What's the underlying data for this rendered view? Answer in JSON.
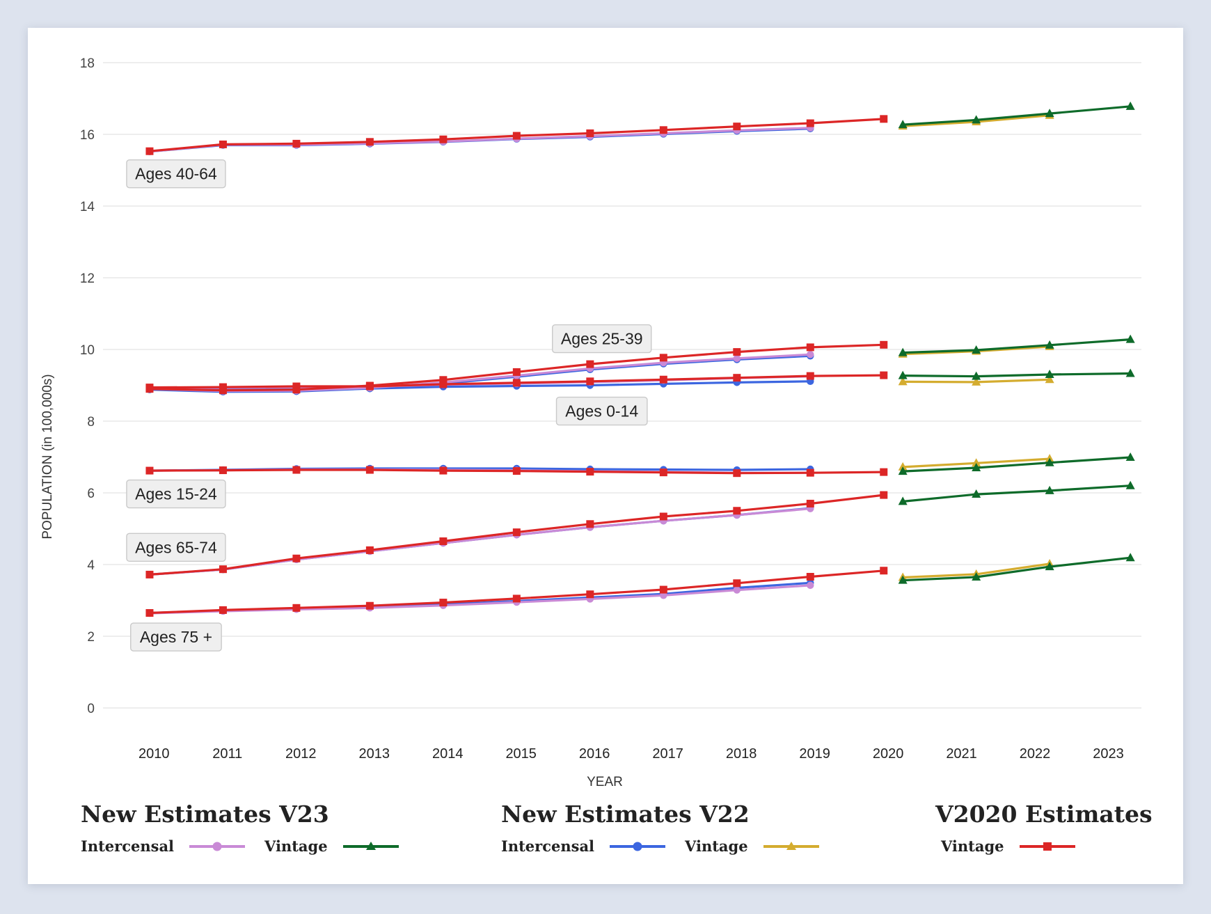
{
  "chart_data": {
    "type": "line",
    "xlabel": "YEAR",
    "ylabel": "POPULATION (in 100,000s)",
    "ylim": [
      0,
      18
    ],
    "yticks": [
      0,
      2,
      4,
      6,
      8,
      10,
      12,
      14,
      16,
      18
    ],
    "xlim": [
      2009.4,
      2023.45
    ],
    "xticks": [
      2010,
      2011,
      2012,
      2013,
      2014,
      2015,
      2016,
      2017,
      2018,
      2019,
      2020,
      2021,
      2022,
      2023
    ],
    "grid": true,
    "legend_position": "bottom",
    "legend_groups": [
      {
        "title": "New Estimates V23",
        "entries": [
          {
            "label": "Intercensal",
            "color": "#c98ad6",
            "marker": "circle"
          },
          {
            "label": "Vintage",
            "color": "#0e6b2a",
            "marker": "triangle"
          }
        ]
      },
      {
        "title": "New Estimates V22",
        "entries": [
          {
            "label": "Intercensal",
            "color": "#3c66e0",
            "marker": "circle"
          },
          {
            "label": "Vintage",
            "color": "#d4ac2f",
            "marker": "triangle"
          }
        ]
      },
      {
        "title": "V2020 Estimates",
        "entries": [
          {
            "label": "Vintage",
            "color": "#dc2626",
            "marker": "square"
          }
        ]
      }
    ],
    "annotations": [
      {
        "text": "Ages 40-64",
        "x": 2010.3,
        "y": 14.9
      },
      {
        "text": "Ages 25-39",
        "x": 2016.1,
        "y": 10.3
      },
      {
        "text": "Ages 0-14",
        "x": 2016.1,
        "y": 8.28
      },
      {
        "text": "Ages 15-24",
        "x": 2010.3,
        "y": 5.97
      },
      {
        "text": "Ages 65-74",
        "x": 2010.3,
        "y": 4.48
      },
      {
        "text": "Ages 75 +",
        "x": 2010.3,
        "y": 1.98
      }
    ],
    "series": [
      {
        "group": "Ages 40-64",
        "kind": "V2020 Vintage",
        "color": "#dc2626",
        "marker": "square",
        "x": [
          2009.94,
          2010.94,
          2011.94,
          2012.94,
          2013.94,
          2014.94,
          2015.94,
          2016.94,
          2017.94,
          2018.94,
          2019.94
        ],
        "values": [
          15.53,
          15.72,
          15.74,
          15.79,
          15.86,
          15.96,
          16.03,
          16.12,
          16.22,
          16.31,
          16.43
        ]
      },
      {
        "group": "Ages 40-64",
        "kind": "V22 Intercensal",
        "color": "#3c66e0",
        "marker": "circle",
        "x": [
          2009.94,
          2010.94,
          2011.94,
          2012.94,
          2013.94,
          2014.94,
          2015.94,
          2016.94,
          2017.94,
          2018.94
        ],
        "values": [
          15.52,
          15.7,
          15.7,
          15.74,
          15.79,
          15.87,
          15.93,
          16.01,
          16.09,
          16.16
        ]
      },
      {
        "group": "Ages 40-64",
        "kind": "V23 Intercensal",
        "color": "#c98ad6",
        "marker": "circle",
        "x": [
          2009.94,
          2010.94,
          2011.94,
          2012.94,
          2013.94,
          2014.94,
          2015.94,
          2016.94,
          2017.94,
          2018.94
        ],
        "values": [
          15.52,
          15.71,
          15.71,
          15.75,
          15.8,
          15.88,
          15.95,
          16.03,
          16.11,
          16.18
        ]
      },
      {
        "group": "Ages 40-64",
        "kind": "V22 Vintage",
        "color": "#d4ac2f",
        "marker": "triangle",
        "x": [
          2020.2,
          2021.2,
          2022.2
        ],
        "values": [
          16.23,
          16.35,
          16.53
        ]
      },
      {
        "group": "Ages 40-64",
        "kind": "V23 Vintage",
        "color": "#0e6b2a",
        "marker": "triangle",
        "x": [
          2020.2,
          2021.2,
          2022.2,
          2023.3
        ],
        "values": [
          16.27,
          16.4,
          16.58,
          16.78
        ]
      },
      {
        "group": "Ages 25-39",
        "kind": "V2020 Vintage",
        "color": "#dc2626",
        "marker": "square",
        "x": [
          2009.94,
          2010.94,
          2011.94,
          2012.94,
          2013.94,
          2014.94,
          2015.94,
          2016.94,
          2017.94,
          2018.94,
          2019.94
        ],
        "values": [
          8.9,
          8.86,
          8.88,
          8.99,
          9.15,
          9.37,
          9.59,
          9.77,
          9.93,
          10.06,
          10.13
        ]
      },
      {
        "group": "Ages 25-39",
        "kind": "V22 Intercensal",
        "color": "#3c66e0",
        "marker": "circle",
        "x": [
          2009.94,
          2010.94,
          2011.94,
          2012.94,
          2013.94,
          2014.94,
          2015.94,
          2016.94,
          2017.94,
          2018.94
        ],
        "values": [
          8.88,
          8.82,
          8.83,
          8.91,
          9.05,
          9.24,
          9.44,
          9.6,
          9.72,
          9.82
        ]
      },
      {
        "group": "Ages 25-39",
        "kind": "V23 Intercensal",
        "color": "#c98ad6",
        "marker": "circle",
        "x": [
          2009.94,
          2010.94,
          2011.94,
          2012.94,
          2013.94,
          2014.94,
          2015.94,
          2016.94,
          2017.94,
          2018.94
        ],
        "values": [
          8.9,
          8.84,
          8.85,
          8.93,
          9.08,
          9.27,
          9.47,
          9.63,
          9.75,
          9.86
        ]
      },
      {
        "group": "Ages 25-39",
        "kind": "V22 Vintage",
        "color": "#d4ac2f",
        "marker": "triangle",
        "x": [
          2020.2,
          2021.2,
          2022.2
        ],
        "values": [
          9.87,
          9.95,
          10.08
        ]
      },
      {
        "group": "Ages 25-39",
        "kind": "V23 Vintage",
        "color": "#0e6b2a",
        "marker": "triangle",
        "x": [
          2020.2,
          2021.2,
          2022.2,
          2023.3
        ],
        "values": [
          9.91,
          9.98,
          10.12,
          10.28
        ]
      },
      {
        "group": "Ages 0-14",
        "kind": "V2020 Vintage",
        "color": "#dc2626",
        "marker": "square",
        "x": [
          2009.94,
          2010.94,
          2011.94,
          2012.94,
          2013.94,
          2014.94,
          2015.94,
          2016.94,
          2017.94,
          2018.94,
          2019.94
        ],
        "values": [
          8.94,
          8.95,
          8.97,
          8.97,
          9.03,
          9.07,
          9.11,
          9.16,
          9.21,
          9.26,
          9.28
        ]
      },
      {
        "group": "Ages 0-14",
        "kind": "V22 Intercensal",
        "color": "#3c66e0",
        "marker": "circle",
        "x": [
          2009.94,
          2010.94,
          2011.94,
          2012.94,
          2013.94,
          2014.94,
          2015.94,
          2016.94,
          2017.94,
          2018.94
        ],
        "values": [
          8.89,
          8.88,
          8.89,
          8.91,
          8.96,
          8.98,
          9.0,
          9.04,
          9.08,
          9.11
        ]
      },
      {
        "group": "Ages 0-14",
        "kind": "V23 Intercensal",
        "color": "#c98ad6",
        "marker": "circle",
        "x": [
          2009.94,
          2010.94,
          2011.94,
          2012.94,
          2013.94,
          2014.94,
          2015.94,
          2016.94,
          2017.94,
          2018.94
        ],
        "values": [
          8.93,
          8.93,
          8.95,
          8.96,
          9.02,
          9.05,
          9.09,
          9.14,
          9.2,
          9.25
        ]
      },
      {
        "group": "Ages 0-14",
        "kind": "V22 Vintage",
        "color": "#d4ac2f",
        "marker": "triangle",
        "x": [
          2020.2,
          2021.2,
          2022.2
        ],
        "values": [
          9.1,
          9.09,
          9.16
        ]
      },
      {
        "group": "Ages 0-14",
        "kind": "V23 Vintage",
        "color": "#0e6b2a",
        "marker": "triangle",
        "x": [
          2020.2,
          2021.2,
          2022.2,
          2023.3
        ],
        "values": [
          9.27,
          9.25,
          9.3,
          9.33
        ]
      },
      {
        "group": "Ages 15-24",
        "kind": "V2020 Vintage",
        "color": "#dc2626",
        "marker": "square",
        "x": [
          2009.94,
          2010.94,
          2011.94,
          2012.94,
          2013.94,
          2014.94,
          2015.94,
          2016.94,
          2017.94,
          2018.94,
          2019.94
        ],
        "values": [
          6.62,
          6.63,
          6.64,
          6.64,
          6.62,
          6.61,
          6.59,
          6.57,
          6.55,
          6.56,
          6.58
        ]
      },
      {
        "group": "Ages 15-24",
        "kind": "V22 Intercensal",
        "color": "#3c66e0",
        "marker": "circle",
        "x": [
          2009.94,
          2010.94,
          2011.94,
          2012.94,
          2013.94,
          2014.94,
          2015.94,
          2016.94,
          2017.94,
          2018.94
        ],
        "values": [
          6.62,
          6.64,
          6.67,
          6.68,
          6.68,
          6.68,
          6.66,
          6.65,
          6.64,
          6.66
        ]
      },
      {
        "group": "Ages 15-24",
        "kind": "V23 Intercensal",
        "color": "#c98ad6",
        "marker": "circle",
        "x": [
          2009.94,
          2010.94,
          2011.94,
          2012.94,
          2013.94,
          2014.94,
          2015.94,
          2016.94,
          2017.94,
          2018.94
        ],
        "values": [
          6.62,
          6.63,
          6.65,
          6.65,
          6.64,
          6.63,
          6.6,
          6.58,
          6.56,
          6.56
        ]
      },
      {
        "group": "Ages 15-24",
        "kind": "V22 Vintage",
        "color": "#d4ac2f",
        "marker": "triangle",
        "x": [
          2020.2,
          2021.2,
          2022.2
        ],
        "values": [
          6.72,
          6.83,
          6.95
        ]
      },
      {
        "group": "Ages 15-24",
        "kind": "V23 Vintage",
        "color": "#0e6b2a",
        "marker": "triangle",
        "x": [
          2020.2,
          2021.2,
          2022.2,
          2023.3
        ],
        "values": [
          6.6,
          6.7,
          6.84,
          6.99
        ]
      },
      {
        "group": "Ages 65-74",
        "kind": "V2020 Vintage",
        "color": "#dc2626",
        "marker": "square",
        "x": [
          2009.94,
          2010.94,
          2011.94,
          2012.94,
          2013.94,
          2014.94,
          2015.94,
          2016.94,
          2017.94,
          2018.94,
          2019.94
        ],
        "values": [
          3.72,
          3.87,
          4.17,
          4.4,
          4.65,
          4.9,
          5.13,
          5.34,
          5.5,
          5.7,
          5.94
        ]
      },
      {
        "group": "Ages 65-74",
        "kind": "V22 Intercensal",
        "color": "#3c66e0",
        "marker": "circle",
        "x": [
          2009.94,
          2010.94,
          2011.94,
          2012.94,
          2013.94,
          2014.94,
          2015.94,
          2016.94,
          2017.94,
          2018.94
        ],
        "values": [
          3.72,
          3.86,
          4.14,
          4.37,
          4.6,
          4.83,
          5.04,
          5.22,
          5.38,
          5.57
        ]
      },
      {
        "group": "Ages 65-74",
        "kind": "V23 Intercensal",
        "color": "#c98ad6",
        "marker": "circle",
        "x": [
          2009.94,
          2010.94,
          2011.94,
          2012.94,
          2013.94,
          2014.94,
          2015.94,
          2016.94,
          2017.94,
          2018.94
        ],
        "values": [
          3.72,
          3.86,
          4.14,
          4.37,
          4.6,
          4.83,
          5.04,
          5.22,
          5.38,
          5.56
        ]
      },
      {
        "group": "Ages 65-74",
        "kind": "V23 Vintage",
        "color": "#0e6b2a",
        "marker": "triangle",
        "x": [
          2020.2,
          2021.2,
          2022.2,
          2023.3
        ],
        "values": [
          5.76,
          5.96,
          6.06,
          6.2
        ]
      },
      {
        "group": "Ages 75 +",
        "kind": "V2020 Vintage",
        "color": "#dc2626",
        "marker": "square",
        "x": [
          2009.94,
          2010.94,
          2011.94,
          2012.94,
          2013.94,
          2014.94,
          2015.94,
          2016.94,
          2017.94,
          2018.94,
          2019.94
        ],
        "values": [
          2.65,
          2.73,
          2.79,
          2.85,
          2.94,
          3.05,
          3.17,
          3.3,
          3.48,
          3.66,
          3.83
        ]
      },
      {
        "group": "Ages 75 +",
        "kind": "V22 Intercensal",
        "color": "#3c66e0",
        "marker": "circle",
        "x": [
          2009.94,
          2010.94,
          2011.94,
          2012.94,
          2013.94,
          2014.94,
          2015.94,
          2016.94,
          2017.94,
          2018.94
        ],
        "values": [
          2.65,
          2.71,
          2.77,
          2.81,
          2.89,
          2.98,
          3.08,
          3.18,
          3.35,
          3.49
        ]
      },
      {
        "group": "Ages 75 +",
        "kind": "V23 Intercensal",
        "color": "#c98ad6",
        "marker": "circle",
        "x": [
          2009.94,
          2010.94,
          2011.94,
          2012.94,
          2013.94,
          2014.94,
          2015.94,
          2016.94,
          2017.94,
          2018.94
        ],
        "values": [
          2.64,
          2.7,
          2.75,
          2.79,
          2.86,
          2.95,
          3.04,
          3.14,
          3.29,
          3.42
        ]
      },
      {
        "group": "Ages 75 +",
        "kind": "V22 Vintage",
        "color": "#d4ac2f",
        "marker": "triangle",
        "x": [
          2020.2,
          2021.2,
          2022.2
        ],
        "values": [
          3.64,
          3.73,
          4.02
        ]
      },
      {
        "group": "Ages 75 +",
        "kind": "V23 Vintage",
        "color": "#0e6b2a",
        "marker": "triangle",
        "x": [
          2020.2,
          2021.2,
          2022.2,
          2023.3
        ],
        "values": [
          3.56,
          3.65,
          3.94,
          4.19
        ]
      }
    ]
  }
}
